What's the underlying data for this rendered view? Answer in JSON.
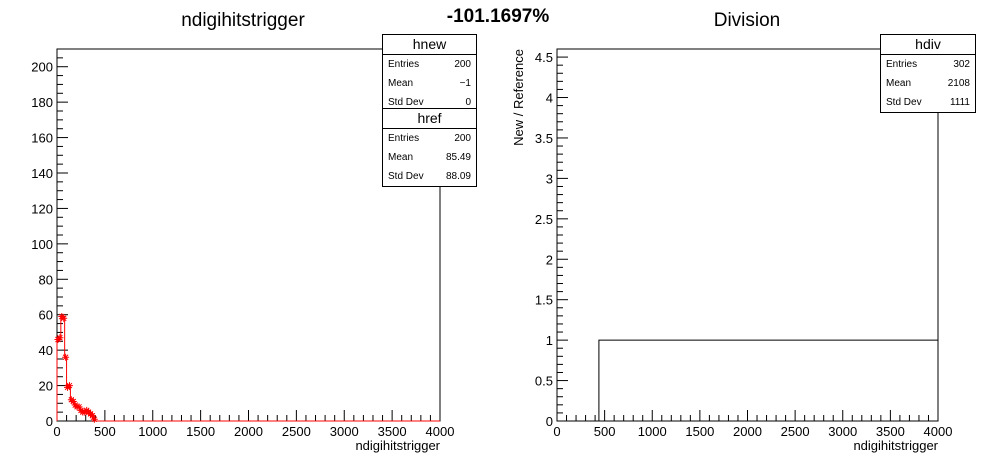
{
  "header": {
    "percent": "-101.1697%"
  },
  "stat_colors": {
    "frame": "#000000",
    "bg": "#ffffff"
  },
  "chart_data": [
    {
      "type": "histogram",
      "title": "ndigihitstrigger",
      "xlabel": "ndigihitstrigger",
      "ylabel": "",
      "xlim": [
        0,
        4000
      ],
      "ylim": [
        0,
        210
      ],
      "xticks": [
        0,
        500,
        1000,
        1500,
        2000,
        2500,
        3000,
        3500,
        4000
      ],
      "yticks": [
        0,
        20,
        40,
        60,
        80,
        100,
        120,
        140,
        160,
        180,
        200
      ],
      "series": [
        {
          "name": "href",
          "color": "#ff0000",
          "points": [
            [
              20,
              46
            ],
            [
              40,
              47
            ],
            [
              60,
              59
            ],
            [
              80,
              58
            ],
            [
              100,
              36
            ],
            [
              120,
              19
            ],
            [
              140,
              20
            ],
            [
              160,
              12
            ],
            [
              180,
              11
            ],
            [
              200,
              9
            ],
            [
              220,
              8
            ],
            [
              240,
              8
            ],
            [
              260,
              6
            ],
            [
              280,
              5
            ],
            [
              300,
              5
            ],
            [
              320,
              6
            ],
            [
              340,
              5
            ],
            [
              360,
              4
            ],
            [
              380,
              3
            ],
            [
              400,
              1
            ]
          ]
        }
      ],
      "stats": [
        {
          "title": "hnew",
          "rows": [
            [
              "Entries",
              "200"
            ],
            [
              "Mean",
              "−1"
            ],
            [
              "Std Dev",
              "0"
            ]
          ]
        },
        {
          "title": "href",
          "rows": [
            [
              "Entries",
              "200"
            ],
            [
              "Mean",
              "85.49"
            ],
            [
              "Std Dev",
              "88.09"
            ]
          ]
        }
      ]
    },
    {
      "type": "histogram",
      "title": "Division",
      "xlabel": "ndigihitstrigger",
      "ylabel": "New / Reference",
      "xlim": [
        0,
        4000
      ],
      "ylim": [
        0,
        4.6
      ],
      "xticks": [
        0,
        500,
        1000,
        1500,
        2000,
        2500,
        3000,
        3500,
        4000
      ],
      "yticks": [
        0,
        0.5,
        1,
        1.5,
        2,
        2.5,
        3,
        3.5,
        4,
        4.5
      ],
      "series": [
        {
          "name": "hdiv",
          "color": "#000000",
          "steps": [
            [
              0,
              440,
              0
            ],
            [
              440,
              4000,
              1
            ]
          ]
        }
      ],
      "stats": [
        {
          "title": "hdiv",
          "rows": [
            [
              "Entries",
              "302"
            ],
            [
              "Mean",
              "2108"
            ],
            [
              "Std Dev",
              "1111"
            ]
          ]
        }
      ]
    }
  ]
}
